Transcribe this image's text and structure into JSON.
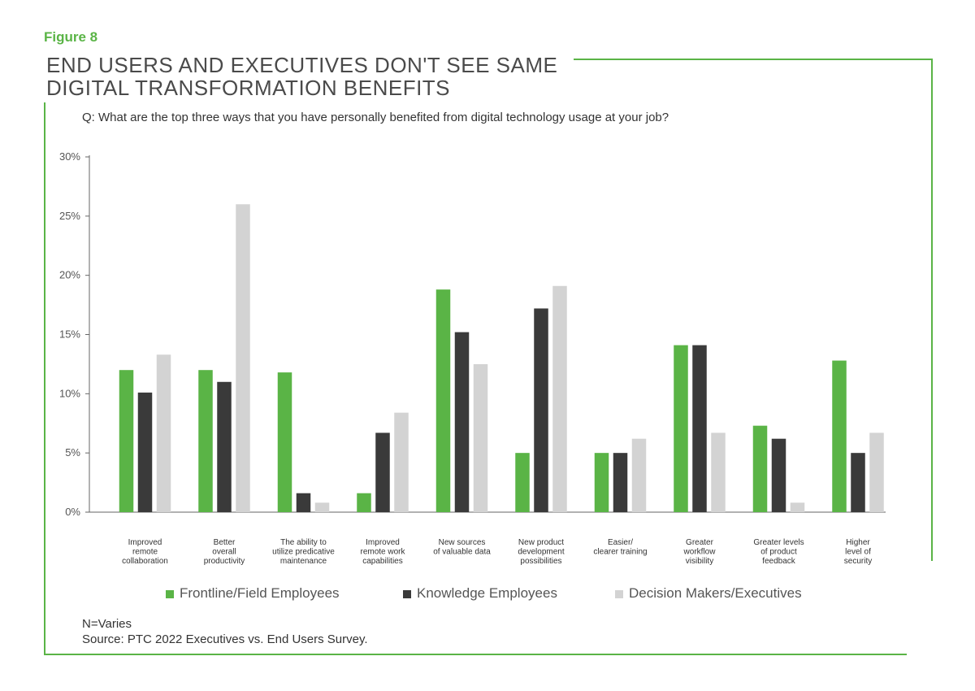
{
  "figure_label": "Figure 8",
  "title_lines": [
    "END USERS AND EXECUTIVES DON'T SEE SAME",
    "DIGITAL TRANSFORMATION BENEFITS"
  ],
  "question": "Q: What are the top three ways that you have personally benefited from digital technology usage at your job?",
  "colors": {
    "accent": "#5ab446",
    "frontline": "#5ab446",
    "knowledge": "#3a3a3a",
    "executives": "#d3d3d3"
  },
  "chart_data": {
    "type": "bar",
    "categories": [
      [
        "Improved",
        "remote",
        "collaboration"
      ],
      [
        "Better",
        "overall",
        "productivity"
      ],
      [
        "The ability to",
        "utilize predicative",
        "maintenance"
      ],
      [
        "Improved",
        "remote work",
        "capabilities"
      ],
      [
        "New sources",
        "of valuable data"
      ],
      [
        "New product",
        "development",
        "possibilities"
      ],
      [
        "Easier/",
        "clearer training"
      ],
      [
        "Greater",
        "workflow",
        "visibility"
      ],
      [
        "Greater levels",
        "of product",
        "feedback"
      ],
      [
        "Higher",
        "level of",
        "security"
      ]
    ],
    "series": [
      {
        "name": "Frontline/Field Employees",
        "color": "#5ab446",
        "values": [
          12,
          12,
          11.8,
          1.6,
          18.8,
          5,
          5,
          14.1,
          7.3,
          12.8
        ]
      },
      {
        "name": "Knowledge Employees",
        "color": "#3a3a3a",
        "values": [
          10.1,
          11,
          1.6,
          6.7,
          15.2,
          17.2,
          5,
          14.1,
          6.2,
          5
        ]
      },
      {
        "name": "Decision Makers/Executives",
        "color": "#d3d3d3",
        "values": [
          13.3,
          26,
          0.8,
          8.4,
          12.5,
          19.1,
          6.2,
          6.7,
          0.8,
          6.7
        ]
      }
    ],
    "y_ticks": [
      "0%",
      "5%",
      "10%",
      "15%",
      "20%",
      "25%",
      "30%"
    ],
    "ylim": [
      0,
      30
    ],
    "grid": false,
    "legend_position": "bottom"
  },
  "legend": [
    "Frontline/Field Employees",
    "Knowledge Employees",
    "Decision Makers/Executives"
  ],
  "note_lines": [
    "N=Varies",
    "Source: PTC 2022 Executives vs. End Users Survey."
  ]
}
